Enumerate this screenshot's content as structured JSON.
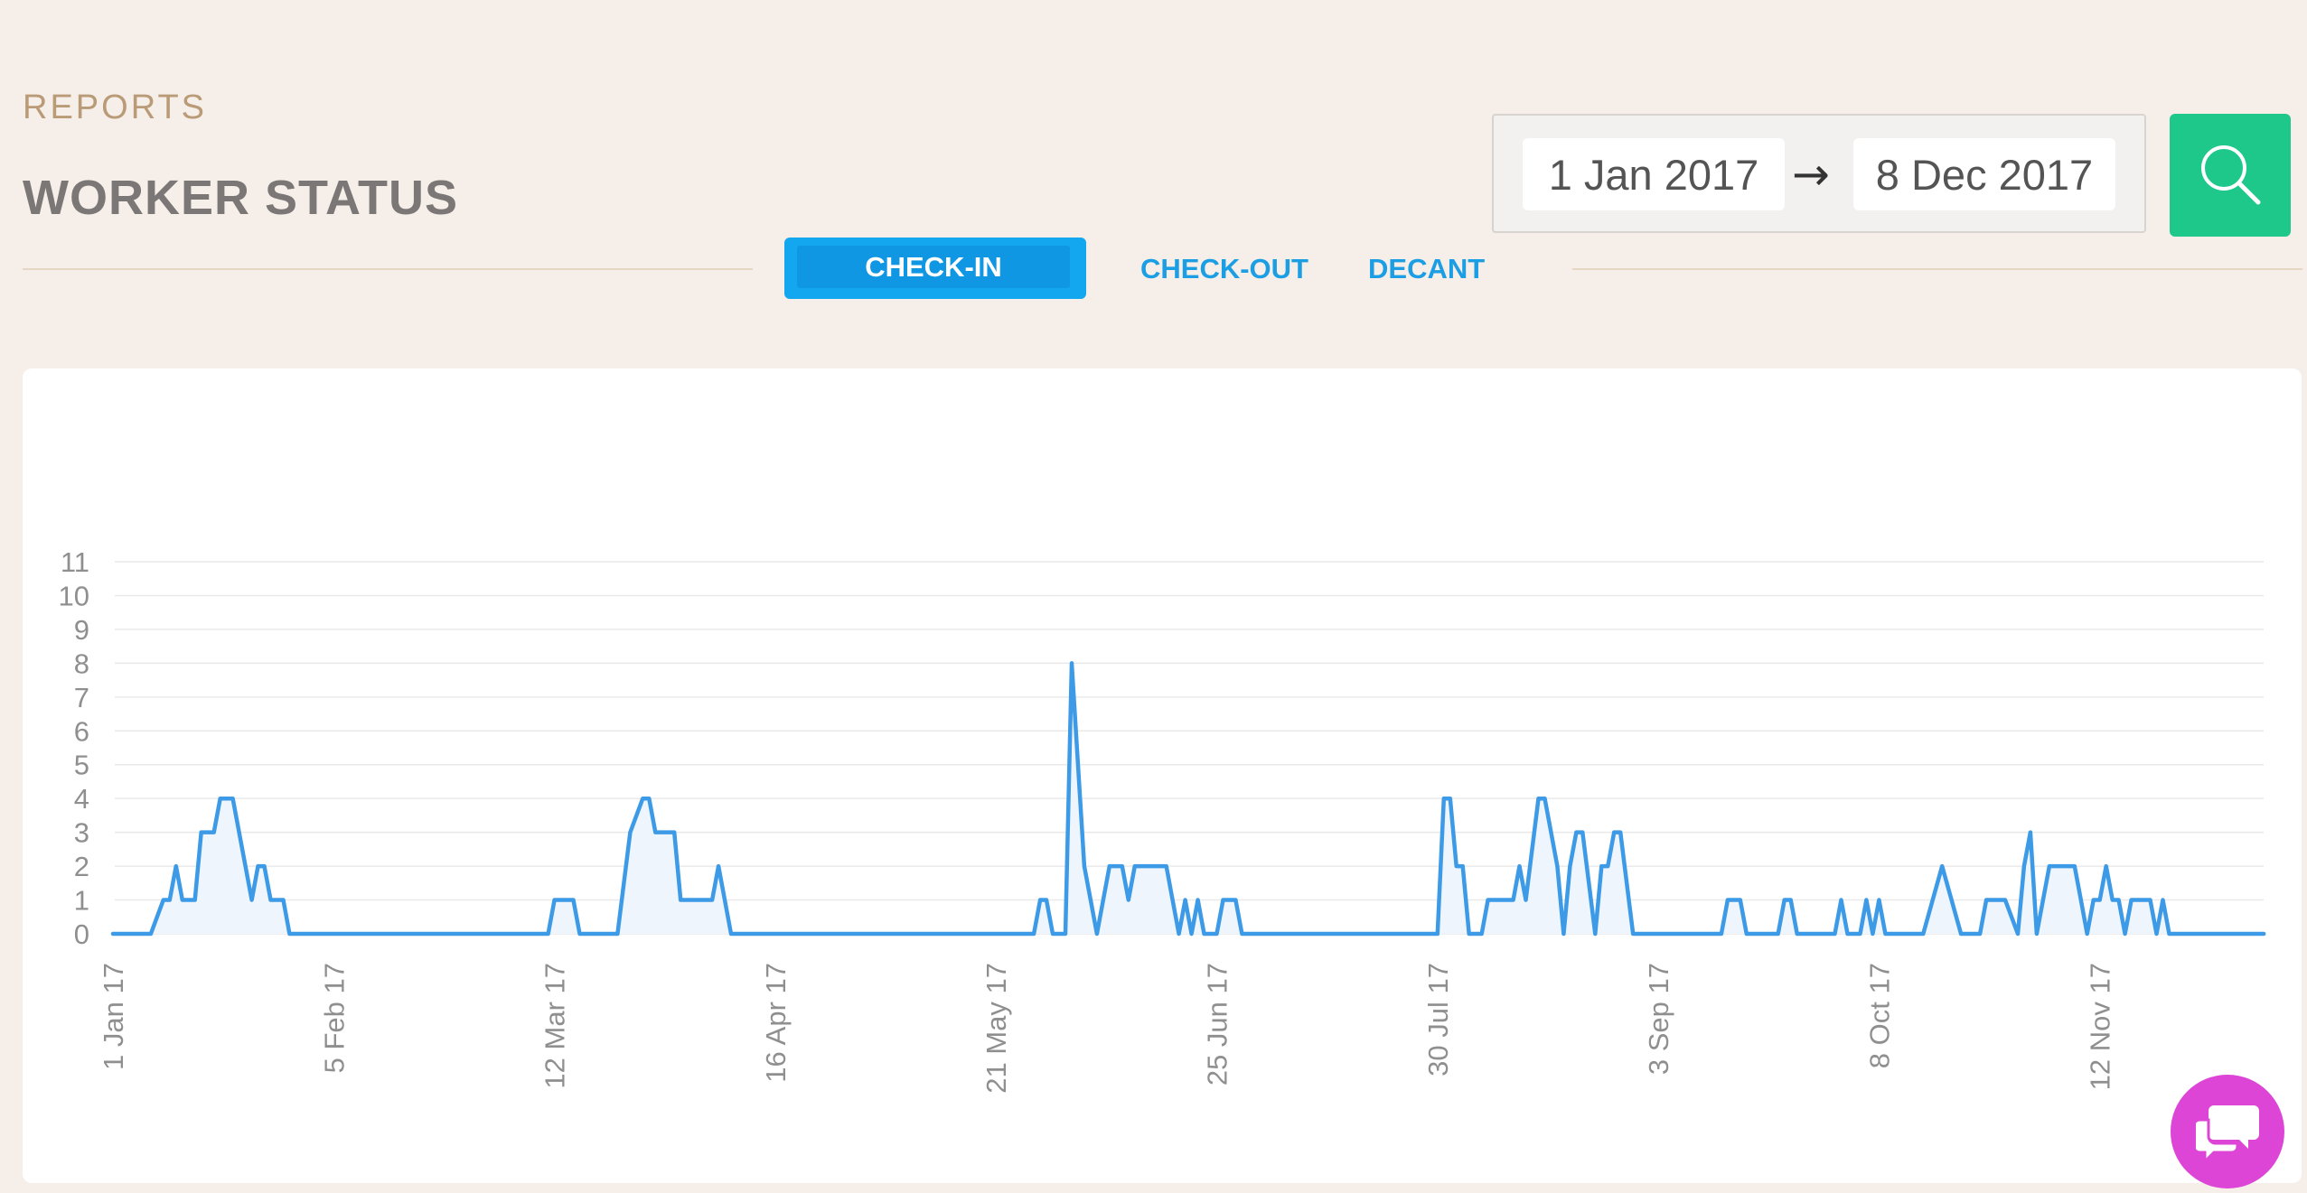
{
  "header": {
    "eyebrow": "REPORTS",
    "title": "WORKER STATUS"
  },
  "tabs": [
    {
      "label": "CHECK-IN",
      "active": true
    },
    {
      "label": "CHECK-OUT",
      "active": false
    },
    {
      "label": "DECANT",
      "active": false
    }
  ],
  "date_range": {
    "from": "1 Jan 2017",
    "arrow": "→",
    "to": "8 Dec 2017"
  },
  "icons": {
    "search": "search-icon",
    "chat": "chat-bubbles-icon"
  },
  "colors": {
    "background": "#f6eee8",
    "accent_blue": "#12a7ef",
    "search_green": "#1ec88b",
    "chat_purple": "#dc45d6",
    "series_line": "#3d9ae6",
    "eyebrow": "#b99b77"
  },
  "chart_data": {
    "type": "line",
    "title": "",
    "xlabel": "",
    "ylabel": "",
    "x_start": "2017-01-01",
    "x_end": "2017-12-08",
    "ylim": [
      0,
      11
    ],
    "y_ticks": [
      0,
      1,
      2,
      3,
      4,
      5,
      6,
      7,
      8,
      9,
      10,
      11
    ],
    "x_tick_labels": [
      "1 Jan 17",
      "5 Feb 17",
      "12 Mar 17",
      "16 Apr 17",
      "21 May 17",
      "25 Jun 17",
      "30 Jul 17",
      "3 Sep 17",
      "8 Oct 17",
      "12 Nov 17"
    ],
    "x_tick_dates": [
      "2017-01-01",
      "2017-02-05",
      "2017-03-12",
      "2017-04-16",
      "2017-05-21",
      "2017-06-25",
      "2017-07-30",
      "2017-09-03",
      "2017-10-08",
      "2017-11-12"
    ],
    "grid": true,
    "area_fill": true,
    "series": [
      {
        "points": [
          [
            "2017-01-01",
            0
          ],
          [
            "2017-01-07",
            0
          ],
          [
            "2017-01-09",
            1
          ],
          [
            "2017-01-10",
            1
          ],
          [
            "2017-01-11",
            2
          ],
          [
            "2017-01-12",
            1
          ],
          [
            "2017-01-14",
            1
          ],
          [
            "2017-01-15",
            3
          ],
          [
            "2017-01-17",
            3
          ],
          [
            "2017-01-18",
            4
          ],
          [
            "2017-01-20",
            4
          ],
          [
            "2017-01-22",
            2
          ],
          [
            "2017-01-23",
            1
          ],
          [
            "2017-01-24",
            2
          ],
          [
            "2017-01-25",
            2
          ],
          [
            "2017-01-26",
            1
          ],
          [
            "2017-01-28",
            1
          ],
          [
            "2017-01-29",
            0
          ],
          [
            "2017-03-11",
            0
          ],
          [
            "2017-03-12",
            1
          ],
          [
            "2017-03-15",
            1
          ],
          [
            "2017-03-16",
            0
          ],
          [
            "2017-03-22",
            0
          ],
          [
            "2017-03-24",
            3
          ],
          [
            "2017-03-26",
            4
          ],
          [
            "2017-03-27",
            4
          ],
          [
            "2017-03-28",
            3
          ],
          [
            "2017-03-31",
            3
          ],
          [
            "2017-04-01",
            1
          ],
          [
            "2017-04-06",
            1
          ],
          [
            "2017-04-07",
            2
          ],
          [
            "2017-04-09",
            0
          ],
          [
            "2017-05-27",
            0
          ],
          [
            "2017-05-28",
            1
          ],
          [
            "2017-05-29",
            1
          ],
          [
            "2017-05-30",
            0
          ],
          [
            "2017-06-01",
            0
          ],
          [
            "2017-06-02",
            8
          ],
          [
            "2017-06-04",
            2
          ],
          [
            "2017-06-06",
            0
          ],
          [
            "2017-06-08",
            2
          ],
          [
            "2017-06-10",
            2
          ],
          [
            "2017-06-11",
            1
          ],
          [
            "2017-06-12",
            2
          ],
          [
            "2017-06-17",
            2
          ],
          [
            "2017-06-18",
            1
          ],
          [
            "2017-06-19",
            0
          ],
          [
            "2017-06-20",
            1
          ],
          [
            "2017-06-21",
            0
          ],
          [
            "2017-06-22",
            1
          ],
          [
            "2017-06-23",
            0
          ],
          [
            "2017-06-25",
            0
          ],
          [
            "2017-06-26",
            1
          ],
          [
            "2017-06-28",
            1
          ],
          [
            "2017-06-29",
            0
          ],
          [
            "2017-07-30",
            0
          ],
          [
            "2017-07-31",
            4
          ],
          [
            "2017-08-01",
            4
          ],
          [
            "2017-08-02",
            2
          ],
          [
            "2017-08-03",
            2
          ],
          [
            "2017-08-04",
            0
          ],
          [
            "2017-08-06",
            0
          ],
          [
            "2017-08-07",
            1
          ],
          [
            "2017-08-11",
            1
          ],
          [
            "2017-08-12",
            2
          ],
          [
            "2017-08-13",
            1
          ],
          [
            "2017-08-15",
            4
          ],
          [
            "2017-08-16",
            4
          ],
          [
            "2017-08-18",
            2
          ],
          [
            "2017-08-19",
            0
          ],
          [
            "2017-08-20",
            2
          ],
          [
            "2017-08-21",
            3
          ],
          [
            "2017-08-22",
            3
          ],
          [
            "2017-08-24",
            0
          ],
          [
            "2017-08-25",
            2
          ],
          [
            "2017-08-26",
            2
          ],
          [
            "2017-08-27",
            3
          ],
          [
            "2017-08-28",
            3
          ],
          [
            "2017-08-30",
            0
          ],
          [
            "2017-09-13",
            0
          ],
          [
            "2017-09-14",
            1
          ],
          [
            "2017-09-16",
            1
          ],
          [
            "2017-09-17",
            0
          ],
          [
            "2017-09-22",
            0
          ],
          [
            "2017-09-23",
            1
          ],
          [
            "2017-09-24",
            1
          ],
          [
            "2017-09-25",
            0
          ],
          [
            "2017-10-01",
            0
          ],
          [
            "2017-10-02",
            1
          ],
          [
            "2017-10-03",
            0
          ],
          [
            "2017-10-05",
            0
          ],
          [
            "2017-10-06",
            1
          ],
          [
            "2017-10-07",
            0
          ],
          [
            "2017-10-08",
            1
          ],
          [
            "2017-10-09",
            0
          ],
          [
            "2017-10-15",
            0
          ],
          [
            "2017-10-18",
            2
          ],
          [
            "2017-10-21",
            0
          ],
          [
            "2017-10-24",
            0
          ],
          [
            "2017-10-25",
            1
          ],
          [
            "2017-10-28",
            1
          ],
          [
            "2017-10-30",
            0
          ],
          [
            "2017-10-31",
            2
          ],
          [
            "2017-11-01",
            3
          ],
          [
            "2017-11-02",
            0
          ],
          [
            "2017-11-04",
            2
          ],
          [
            "2017-11-08",
            2
          ],
          [
            "2017-11-09",
            1
          ],
          [
            "2017-11-10",
            0
          ],
          [
            "2017-11-11",
            1
          ],
          [
            "2017-11-12",
            1
          ],
          [
            "2017-11-13",
            2
          ],
          [
            "2017-11-14",
            1
          ],
          [
            "2017-11-15",
            1
          ],
          [
            "2017-11-16",
            0
          ],
          [
            "2017-11-17",
            1
          ],
          [
            "2017-11-20",
            1
          ],
          [
            "2017-11-21",
            0
          ],
          [
            "2017-11-22",
            1
          ],
          [
            "2017-11-23",
            0
          ],
          [
            "2017-12-08",
            0
          ]
        ]
      }
    ]
  }
}
